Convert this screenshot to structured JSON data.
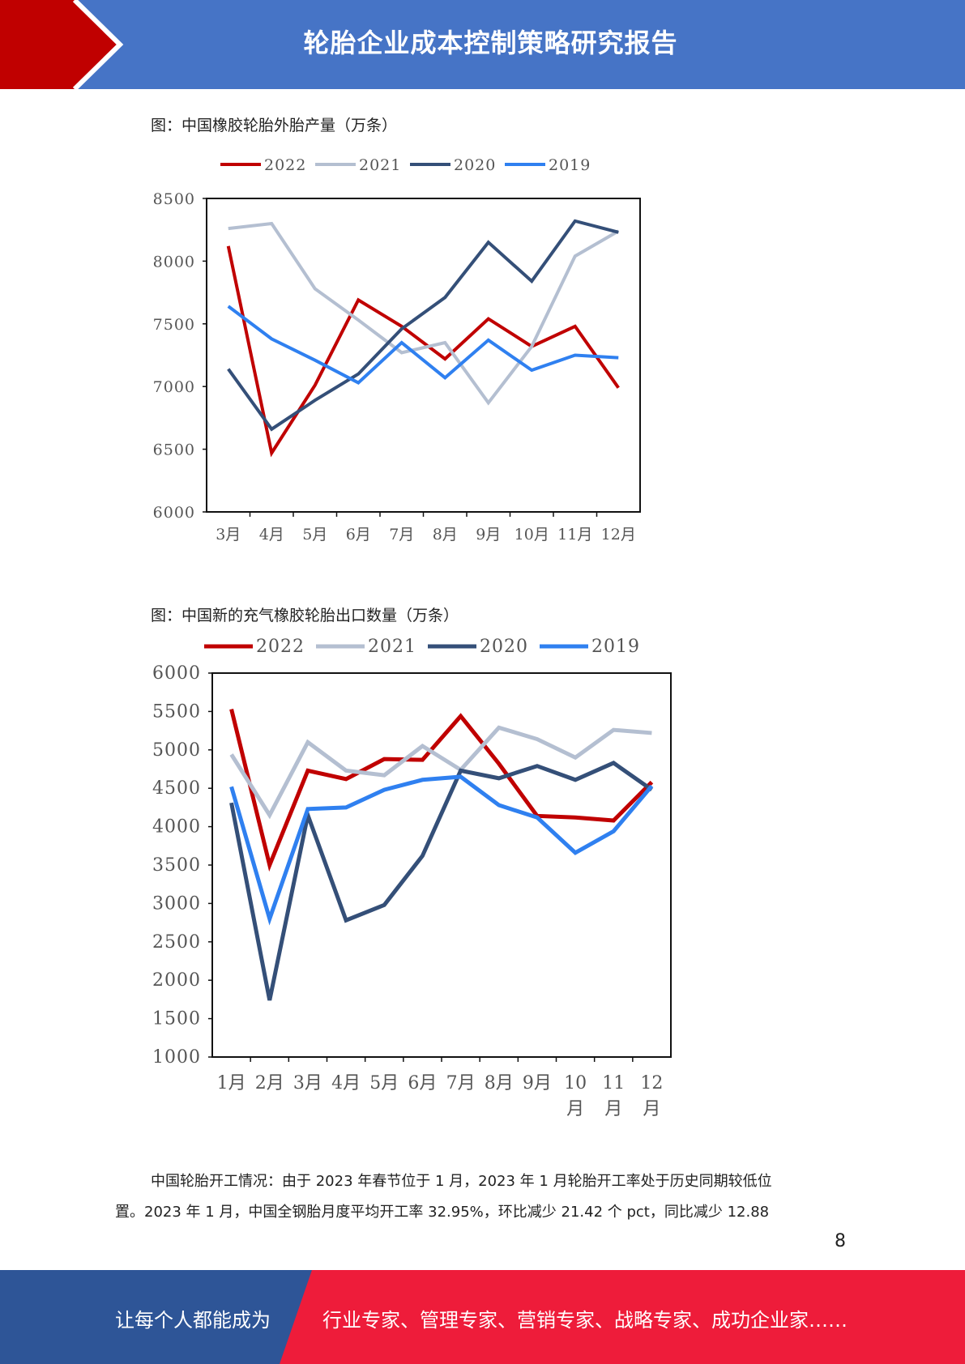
{
  "header": {
    "title": "轮胎企业成本控制策略研究报告"
  },
  "figure1": {
    "caption": "图：中国橡胶轮胎外胎产量（万条）"
  },
  "figure2": {
    "caption": "图：中国新的充气橡胶轮胎出口数量（万条）"
  },
  "colors": {
    "header_blue": "#4674c6",
    "accent_red": "#c00000",
    "s2022": "#c00000",
    "s2021": "#b4bfd1",
    "s2020": "#344f78",
    "s2019": "#2f80f0",
    "footer_blue": "#2e5597",
    "footer_red": "#ee1c3a"
  },
  "chart_data": [
    {
      "type": "line",
      "title": "图：中国橡胶轮胎外胎产量（万条）",
      "categories": [
        "3月",
        "4月",
        "5月",
        "6月",
        "7月",
        "8月",
        "9月",
        "10月",
        "11月",
        "12月"
      ],
      "ylim": [
        6000,
        8500
      ],
      "yticks": [
        "6000",
        "6500",
        "7000",
        "7500",
        "8000",
        "8500"
      ],
      "grid": false,
      "legend": "top",
      "series": [
        {
          "name": "2022",
          "color": "#c00000",
          "values": [
            8120,
            6470,
            7010,
            7690,
            7480,
            7220,
            7540,
            7320,
            7480,
            6990
          ]
        },
        {
          "name": "2021",
          "color": "#b4bfd1",
          "values": [
            8260,
            8300,
            7780,
            7530,
            7270,
            7350,
            6870,
            7320,
            8040,
            8240
          ]
        },
        {
          "name": "2020",
          "color": "#344f78",
          "values": [
            7140,
            6660,
            6890,
            7100,
            7460,
            7710,
            8150,
            7840,
            8320,
            8230
          ]
        },
        {
          "name": "2019",
          "color": "#2f80f0",
          "values": [
            7640,
            7380,
            7210,
            7030,
            7350,
            7070,
            7370,
            7130,
            7250,
            7230
          ]
        }
      ]
    },
    {
      "type": "line",
      "title": "图：中国新的充气橡胶轮胎出口数量（万条）",
      "categories": [
        "1月",
        "2月",
        "3月",
        "4月",
        "5月",
        "6月",
        "7月",
        "8月",
        "9月",
        "10\n月",
        "11\n月",
        "12\n月"
      ],
      "ylim": [
        1000,
        6000
      ],
      "yticks": [
        "1000",
        "1500",
        "2000",
        "2500",
        "3000",
        "3500",
        "4000",
        "4500",
        "5000",
        "5500",
        "6000"
      ],
      "grid": false,
      "legend": "top",
      "series": [
        {
          "name": "2022",
          "color": "#c00000",
          "values": [
            5530,
            3500,
            4730,
            4620,
            4880,
            4870,
            5440,
            4820,
            4140,
            4120,
            4080,
            4580
          ]
        },
        {
          "name": "2021",
          "color": "#b4bfd1",
          "values": [
            4940,
            4150,
            5100,
            4730,
            4670,
            5050,
            4740,
            5290,
            5140,
            4900,
            5260,
            5220
          ]
        },
        {
          "name": "2020",
          "color": "#344f78",
          "values": [
            4310,
            1740,
            4150,
            2780,
            2980,
            3620,
            4730,
            4630,
            4790,
            4610,
            4830,
            4480
          ]
        },
        {
          "name": "2019",
          "color": "#2f80f0",
          "values": [
            4520,
            2800,
            4230,
            4250,
            4480,
            4610,
            4650,
            4280,
            4120,
            3660,
            3940,
            4530
          ]
        }
      ]
    }
  ],
  "paragraph": {
    "line1": "中国轮胎开工情况：由于 2023 年春节位于 1 月，2023 年 1 月轮胎开工率处于历史同期较低位",
    "line2": "置。2023 年 1 月，中国全钢胎月度平均开工率 32.95%，环比减少 21.42 个 pct，同比减少 12.88"
  },
  "page": {
    "number": "8"
  },
  "footer": {
    "left": "让每个人都能成为",
    "right": "行业专家、管理专家、营销专家、战略专家、成功企业家……"
  }
}
